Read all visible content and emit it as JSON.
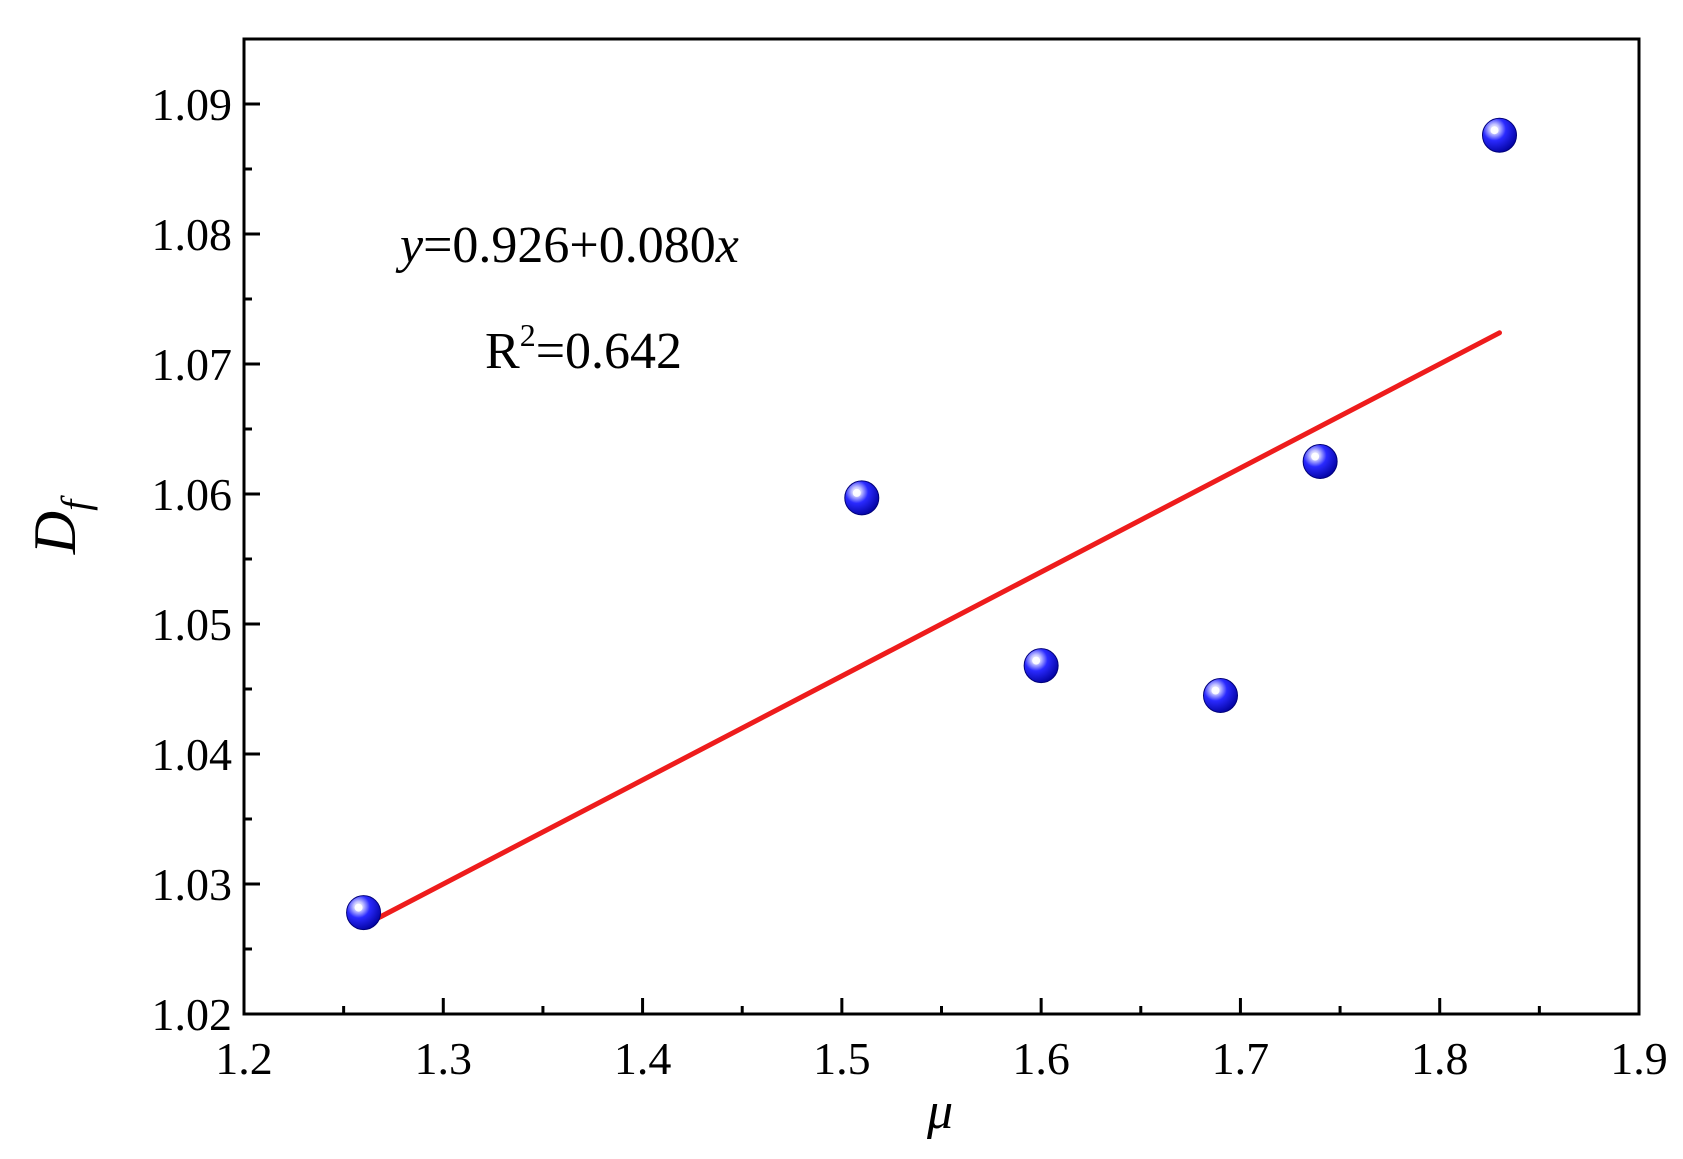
{
  "chart_data": {
    "type": "scatter",
    "xlabel": "μ",
    "ylabel": {
      "main": "D",
      "sub": "f"
    },
    "xlim": [
      1.2,
      1.9
    ],
    "ylim": [
      1.02,
      1.095
    ],
    "xticks": [
      "1.2",
      "1.3",
      "1.4",
      "1.5",
      "1.6",
      "1.7",
      "1.8",
      "1.9"
    ],
    "yticks": [
      "1.02",
      "1.03",
      "1.04",
      "1.05",
      "1.06",
      "1.07",
      "1.08",
      "1.09"
    ],
    "series": [
      {
        "marker_color": "#0000ee",
        "x": [
          1.26,
          1.51,
          1.6,
          1.69,
          1.74,
          1.83
        ],
        "y": [
          1.0278,
          1.0597,
          1.0468,
          1.0445,
          1.0625,
          1.0876
        ]
      }
    ],
    "fit": {
      "intercept": 0.926,
      "slope": 0.08,
      "x_range": [
        1.26,
        1.83
      ],
      "color": "#ee1c1c"
    },
    "annotation": {
      "equation": {
        "y": "y",
        "rhs": "=0.926+0.080",
        "x": "x"
      },
      "r2": {
        "r": "R",
        "sup": "2",
        "value": "=0.642"
      }
    },
    "grid": false,
    "legend": false
  }
}
